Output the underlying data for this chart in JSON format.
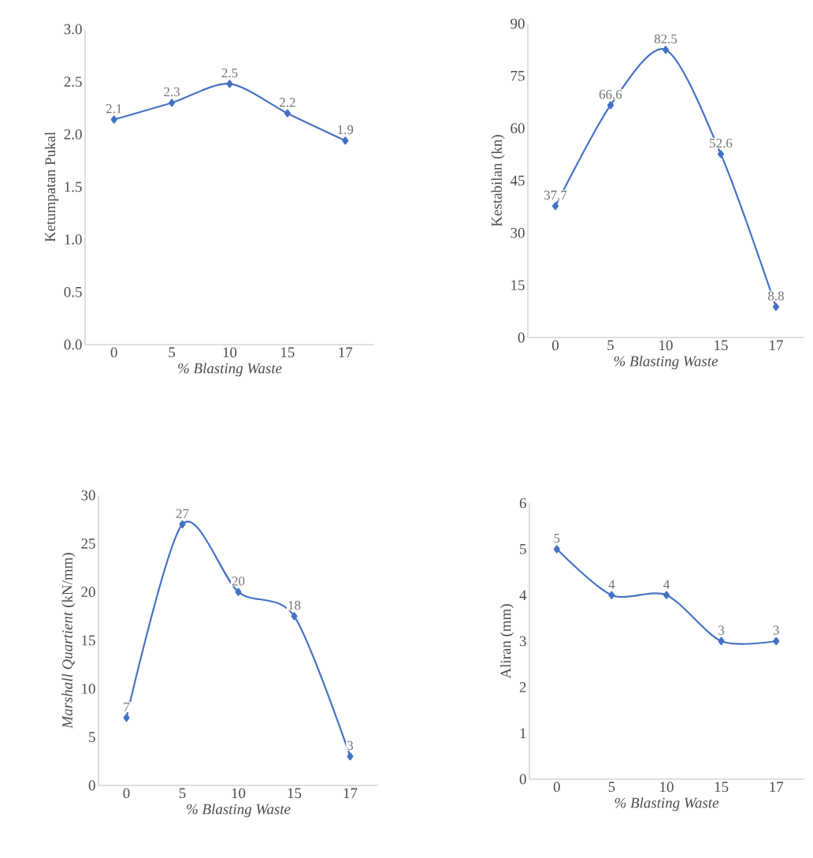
{
  "chart_data": [
    {
      "type": "line",
      "categories": [
        "0",
        "5",
        "10",
        "15",
        "17"
      ],
      "ylabel": "Ketumpatan Pukal",
      "xlabel": "% Blasting Waste",
      "color": "#4472c4",
      "marker": "diamond",
      "grid": false,
      "values": [
        2.14,
        2.3,
        2.48,
        2.2,
        1.94
      ],
      "value_labels": [
        "2.1",
        "2.3",
        "2.5",
        "2.2",
        "1.9"
      ],
      "ylim": [
        0,
        3
      ],
      "yticks": [
        {
          "value": 0,
          "label": "0.0"
        },
        {
          "value": 0.5,
          "label": "0.5"
        },
        {
          "value": 1,
          "label": "1.0"
        },
        {
          "value": 1.5,
          "label": "1.5"
        },
        {
          "value": 2,
          "label": "2.0"
        },
        {
          "value": 2.5,
          "label": "2.5"
        },
        {
          "value": 3,
          "label": "3.0"
        }
      ]
    },
    {
      "type": "line",
      "categories": [
        "0",
        "5",
        "10",
        "15",
        "17"
      ],
      "ylabel": "Kestabilan (kn)",
      "xlabel": "% Blasting Waste",
      "color": "#4472c4",
      "marker": "diamond",
      "grid": false,
      "values": [
        37.7,
        66.6,
        82.5,
        52.6,
        8.8
      ],
      "data_labels": true,
      "ylim": [
        0,
        90
      ],
      "yticks": [
        0,
        15,
        30,
        45,
        60,
        75,
        90
      ]
    },
    {
      "type": "line",
      "categories": [
        "0",
        "5",
        "10",
        "15",
        "17"
      ],
      "ylabel": "*Marshall Quartient* (kN/mm)",
      "xlabel": "% Blasting Waste",
      "color": "#4472c4",
      "marker": "diamond",
      "grid": false,
      "values": [
        7,
        27,
        20,
        17.5,
        3
      ],
      "value_labels": [
        "7",
        "27",
        "20",
        "18",
        "3"
      ],
      "ylim": [
        0,
        30
      ],
      "yticks": [
        0,
        5,
        10,
        15,
        20,
        25,
        30
      ]
    },
    {
      "type": "line",
      "categories": [
        "0",
        "5",
        "10",
        "15",
        "17"
      ],
      "ylabel": "Aliran (mm)",
      "xlabel": "% Blasting Waste",
      "color": "#4472c4",
      "marker": "diamond",
      "grid": false,
      "values": [
        5,
        4,
        4,
        3,
        3
      ],
      "data_labels": true,
      "ylim": [
        0,
        6
      ],
      "yticks": [
        0,
        1,
        2,
        3,
        4,
        5,
        6
      ]
    }
  ]
}
